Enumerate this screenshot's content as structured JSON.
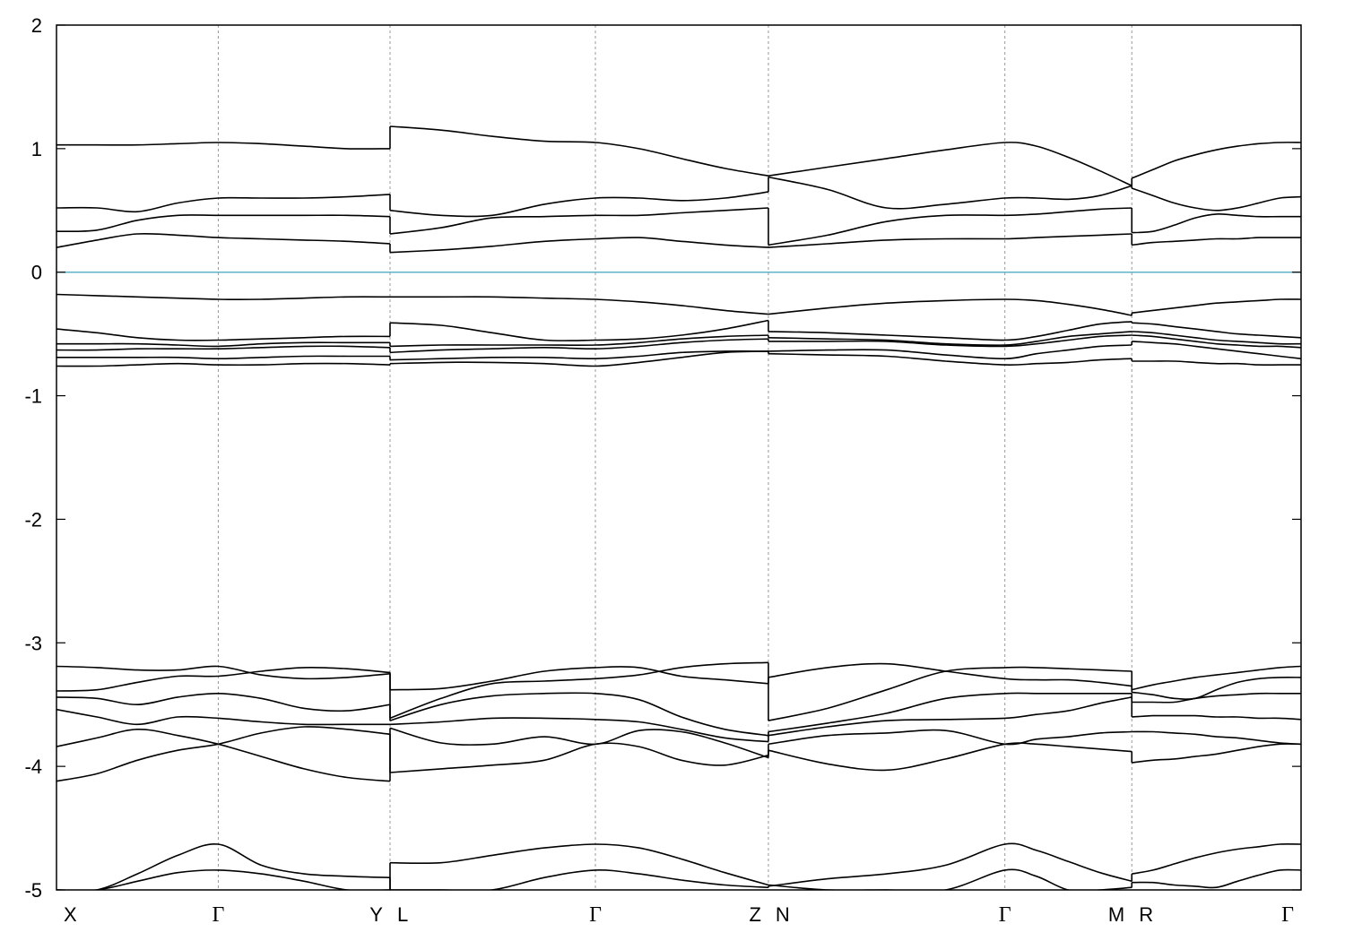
{
  "chart_data": {
    "type": "line",
    "title": "",
    "xlabel": "",
    "ylabel": "",
    "ylim": [
      -5,
      2
    ],
    "yticks": [
      {
        "value": 2,
        "label": "2"
      },
      {
        "value": 1,
        "label": "1"
      },
      {
        "value": 0,
        "label": "0"
      },
      {
        "value": -1,
        "label": "-1"
      },
      {
        "value": -2,
        "label": "-2"
      },
      {
        "value": -3,
        "label": "-3"
      },
      {
        "value": -4,
        "label": "-4"
      },
      {
        "value": -5,
        "label": "-5"
      }
    ],
    "xlim": [
      0,
      10
    ],
    "kpoints": [
      {
        "x": 0.0,
        "label": "X",
        "align": "start"
      },
      {
        "x": 1.3,
        "label": "Γ",
        "align": "middle",
        "greek": true
      },
      {
        "x": 2.68,
        "label": "Y",
        "align": "end"
      },
      {
        "x": 2.68,
        "label": "L",
        "align": "start"
      },
      {
        "x": 4.33,
        "label": "Γ",
        "align": "middle",
        "greek": true
      },
      {
        "x": 5.72,
        "label": "Z",
        "align": "end"
      },
      {
        "x": 5.72,
        "label": "N",
        "align": "start"
      },
      {
        "x": 7.62,
        "label": "Γ",
        "align": "middle",
        "greek": true
      },
      {
        "x": 8.64,
        "label": "M",
        "align": "end"
      },
      {
        "x": 8.64,
        "label": "R",
        "align": "start"
      },
      {
        "x": 10.0,
        "label": "Γ",
        "align": "end",
        "greek": true
      }
    ],
    "vlines": [
      1.3,
      2.68,
      4.33,
      5.72,
      7.62,
      8.64
    ],
    "fermi_level": 0,
    "grid": "vertical-dashed-at-kpoints",
    "colors": {
      "bands": "#000000",
      "fermi": "#5fb3c8",
      "vgrid": "#999999"
    },
    "segments": [
      {
        "name": "X-Γ-Y",
        "x": [
          0,
          0.325,
          0.65,
          0.975,
          1.3,
          1.645,
          1.99,
          2.335,
          2.68
        ],
        "bands": [
          [
            -5.0,
            -5.0,
            -4.87,
            -4.72,
            -4.63,
            -4.8,
            -4.87,
            -4.89,
            -4.9
          ],
          [
            -5.0,
            -5.0,
            -4.93,
            -4.86,
            -4.84,
            -4.87,
            -4.93,
            -5.0,
            -5.0
          ],
          [
            -4.12,
            -4.06,
            -3.95,
            -3.87,
            -3.82,
            -3.73,
            -3.68,
            -3.7,
            -3.74
          ],
          [
            -3.84,
            -3.77,
            -3.7,
            -3.75,
            -3.82,
            -3.92,
            -4.02,
            -4.09,
            -4.12
          ],
          [
            -3.54,
            -3.6,
            -3.66,
            -3.6,
            -3.61,
            -3.64,
            -3.66,
            -3.66,
            -3.66
          ],
          [
            -3.44,
            -3.45,
            -3.5,
            -3.44,
            -3.41,
            -3.45,
            -3.53,
            -3.55,
            -3.5
          ],
          [
            -3.39,
            -3.38,
            -3.32,
            -3.27,
            -3.27,
            -3.23,
            -3.2,
            -3.21,
            -3.24
          ],
          [
            -3.19,
            -3.2,
            -3.22,
            -3.22,
            -3.19,
            -3.26,
            -3.29,
            -3.28,
            -3.25
          ],
          [
            -0.76,
            -0.76,
            -0.75,
            -0.74,
            -0.75,
            -0.75,
            -0.74,
            -0.74,
            -0.75
          ],
          [
            -0.69,
            -0.69,
            -0.69,
            -0.69,
            -0.7,
            -0.69,
            -0.68,
            -0.68,
            -0.68
          ],
          [
            -0.63,
            -0.63,
            -0.62,
            -0.62,
            -0.62,
            -0.61,
            -0.6,
            -0.6,
            -0.61
          ],
          [
            -0.58,
            -0.58,
            -0.58,
            -0.59,
            -0.6,
            -0.58,
            -0.57,
            -0.57,
            -0.57
          ],
          [
            -0.46,
            -0.49,
            -0.53,
            -0.55,
            -0.55,
            -0.54,
            -0.53,
            -0.52,
            -0.52
          ],
          [
            -0.18,
            -0.19,
            -0.2,
            -0.21,
            -0.22,
            -0.22,
            -0.21,
            -0.2,
            -0.2
          ],
          [
            0.2,
            0.26,
            0.31,
            0.3,
            0.28,
            0.27,
            0.26,
            0.25,
            0.23
          ],
          [
            0.33,
            0.34,
            0.42,
            0.46,
            0.46,
            0.46,
            0.46,
            0.46,
            0.45
          ],
          [
            0.52,
            0.52,
            0.49,
            0.56,
            0.6,
            0.6,
            0.6,
            0.61,
            0.63
          ],
          [
            1.03,
            1.03,
            1.03,
            1.04,
            1.05,
            1.04,
            1.02,
            1.0,
            1.0
          ]
        ]
      },
      {
        "name": "L-Γ-Z",
        "x": [
          2.68,
          3.09,
          3.5,
          3.92,
          4.33,
          4.68,
          5.02,
          5.37,
          5.72
        ],
        "bands": [
          [
            -5.0,
            -5.0,
            -5.0,
            -4.9,
            -4.84,
            -4.87,
            -4.92,
            -4.96,
            -4.98
          ],
          [
            -4.78,
            -4.78,
            -4.72,
            -4.66,
            -4.63,
            -4.66,
            -4.75,
            -4.86,
            -4.96
          ],
          [
            -4.05,
            -4.02,
            -3.99,
            -3.95,
            -3.82,
            -3.84,
            -3.95,
            -3.99,
            -3.91
          ],
          [
            -3.69,
            -3.81,
            -3.82,
            -3.76,
            -3.82,
            -3.71,
            -3.72,
            -3.81,
            -3.93
          ],
          [
            -3.66,
            -3.64,
            -3.61,
            -3.61,
            -3.62,
            -3.64,
            -3.7,
            -3.77,
            -3.8
          ],
          [
            -3.63,
            -3.5,
            -3.43,
            -3.41,
            -3.41,
            -3.46,
            -3.6,
            -3.7,
            -3.75
          ],
          [
            -3.61,
            -3.45,
            -3.33,
            -3.31,
            -3.29,
            -3.26,
            -3.2,
            -3.17,
            -3.16
          ],
          [
            -3.38,
            -3.37,
            -3.31,
            -3.23,
            -3.2,
            -3.2,
            -3.27,
            -3.3,
            -3.33
          ],
          [
            -0.74,
            -0.73,
            -0.73,
            -0.74,
            -0.76,
            -0.73,
            -0.69,
            -0.65,
            -0.64
          ],
          [
            -0.71,
            -0.7,
            -0.69,
            -0.69,
            -0.7,
            -0.68,
            -0.65,
            -0.64,
            -0.64
          ],
          [
            -0.65,
            -0.63,
            -0.62,
            -0.61,
            -0.62,
            -0.6,
            -0.57,
            -0.55,
            -0.54
          ],
          [
            -0.6,
            -0.59,
            -0.59,
            -0.59,
            -0.59,
            -0.57,
            -0.54,
            -0.52,
            -0.51
          ],
          [
            -0.41,
            -0.43,
            -0.49,
            -0.55,
            -0.55,
            -0.54,
            -0.51,
            -0.46,
            -0.39
          ],
          [
            -0.2,
            -0.2,
            -0.2,
            -0.21,
            -0.22,
            -0.24,
            -0.27,
            -0.31,
            -0.34
          ],
          [
            0.16,
            0.18,
            0.21,
            0.25,
            0.27,
            0.28,
            0.25,
            0.22,
            0.2
          ],
          [
            0.31,
            0.36,
            0.44,
            0.45,
            0.46,
            0.46,
            0.48,
            0.5,
            0.52
          ],
          [
            0.5,
            0.46,
            0.46,
            0.55,
            0.6,
            0.6,
            0.58,
            0.6,
            0.65
          ],
          [
            1.18,
            1.15,
            1.1,
            1.06,
            1.05,
            1.0,
            0.92,
            0.84,
            0.78
          ]
        ]
      },
      {
        "name": "N-Γ-M",
        "x": [
          5.72,
          6.195,
          6.67,
          7.145,
          7.62,
          7.875,
          8.13,
          8.385,
          8.64
        ],
        "bands": [
          [
            -4.97,
            -4.91,
            -4.87,
            -4.8,
            -4.63,
            -4.68,
            -4.77,
            -4.86,
            -4.93
          ],
          [
            -4.96,
            -5.0,
            -5.0,
            -5.0,
            -4.84,
            -4.89,
            -5.0,
            -5.0,
            -4.98
          ],
          [
            -3.87,
            -3.98,
            -4.03,
            -3.94,
            -3.82,
            -3.82,
            -3.84,
            -3.86,
            -3.88
          ],
          [
            -3.82,
            -3.75,
            -3.73,
            -3.71,
            -3.82,
            -3.78,
            -3.76,
            -3.73,
            -3.72
          ],
          [
            -3.75,
            -3.68,
            -3.63,
            -3.62,
            -3.61,
            -3.58,
            -3.55,
            -3.49,
            -3.44
          ],
          [
            -3.72,
            -3.65,
            -3.57,
            -3.45,
            -3.41,
            -3.41,
            -3.41,
            -3.41,
            -3.41
          ],
          [
            -3.63,
            -3.53,
            -3.38,
            -3.23,
            -3.2,
            -3.2,
            -3.21,
            -3.22,
            -3.23
          ],
          [
            -3.28,
            -3.2,
            -3.17,
            -3.23,
            -3.29,
            -3.3,
            -3.3,
            -3.32,
            -3.35
          ],
          [
            -0.66,
            -0.67,
            -0.68,
            -0.72,
            -0.75,
            -0.74,
            -0.73,
            -0.71,
            -0.7
          ],
          [
            -0.64,
            -0.63,
            -0.63,
            -0.67,
            -0.7,
            -0.66,
            -0.63,
            -0.6,
            -0.59
          ],
          [
            -0.56,
            -0.56,
            -0.56,
            -0.59,
            -0.6,
            -0.58,
            -0.55,
            -0.52,
            -0.51
          ],
          [
            -0.53,
            -0.54,
            -0.55,
            -0.58,
            -0.59,
            -0.56,
            -0.52,
            -0.5,
            -0.48
          ],
          [
            -0.48,
            -0.49,
            -0.51,
            -0.53,
            -0.55,
            -0.52,
            -0.47,
            -0.42,
            -0.4
          ],
          [
            -0.34,
            -0.29,
            -0.25,
            -0.23,
            -0.22,
            -0.23,
            -0.26,
            -0.3,
            -0.35
          ],
          [
            0.2,
            0.23,
            0.26,
            0.27,
            0.27,
            0.28,
            0.29,
            0.3,
            0.31
          ],
          [
            0.22,
            0.3,
            0.41,
            0.46,
            0.46,
            0.47,
            0.49,
            0.51,
            0.52
          ],
          [
            0.77,
            0.67,
            0.52,
            0.55,
            0.6,
            0.6,
            0.59,
            0.62,
            0.7
          ],
          [
            0.78,
            0.85,
            0.92,
            0.99,
            1.05,
            1.02,
            0.93,
            0.82,
            0.7
          ]
        ]
      },
      {
        "name": "R-Γ",
        "x": [
          8.64,
          8.81,
          8.98,
          9.15,
          9.32,
          9.49,
          9.66,
          9.83,
          10.0
        ],
        "bands": [
          [
            -4.87,
            -4.84,
            -4.79,
            -4.74,
            -4.7,
            -4.67,
            -4.65,
            -4.63,
            -4.63
          ],
          [
            -4.94,
            -4.94,
            -4.96,
            -4.97,
            -4.98,
            -4.93,
            -4.88,
            -4.84,
            -4.84
          ],
          [
            -3.97,
            -3.95,
            -3.94,
            -3.92,
            -3.9,
            -3.87,
            -3.84,
            -3.82,
            -3.82
          ],
          [
            -3.72,
            -3.72,
            -3.73,
            -3.74,
            -3.76,
            -3.77,
            -3.79,
            -3.81,
            -3.82
          ],
          [
            -3.6,
            -3.59,
            -3.59,
            -3.59,
            -3.6,
            -3.6,
            -3.61,
            -3.61,
            -3.62
          ],
          [
            -3.48,
            -3.48,
            -3.48,
            -3.45,
            -3.43,
            -3.42,
            -3.41,
            -3.41,
            -3.41
          ],
          [
            -3.4,
            -3.42,
            -3.45,
            -3.45,
            -3.38,
            -3.32,
            -3.29,
            -3.28,
            -3.28
          ],
          [
            -3.38,
            -3.34,
            -3.31,
            -3.28,
            -3.26,
            -3.24,
            -3.22,
            -3.2,
            -3.19
          ],
          [
            -0.72,
            -0.72,
            -0.72,
            -0.73,
            -0.74,
            -0.74,
            -0.75,
            -0.75,
            -0.75
          ],
          [
            -0.56,
            -0.57,
            -0.58,
            -0.6,
            -0.62,
            -0.64,
            -0.66,
            -0.68,
            -0.7
          ],
          [
            -0.51,
            -0.52,
            -0.54,
            -0.56,
            -0.58,
            -0.59,
            -0.6,
            -0.6,
            -0.61
          ],
          [
            -0.48,
            -0.49,
            -0.51,
            -0.53,
            -0.55,
            -0.56,
            -0.57,
            -0.58,
            -0.58
          ],
          [
            -0.41,
            -0.42,
            -0.44,
            -0.46,
            -0.48,
            -0.5,
            -0.51,
            -0.52,
            -0.53
          ],
          [
            -0.33,
            -0.31,
            -0.29,
            -0.27,
            -0.25,
            -0.24,
            -0.23,
            -0.22,
            -0.22
          ],
          [
            0.22,
            0.24,
            0.25,
            0.26,
            0.27,
            0.27,
            0.28,
            0.28,
            0.28
          ],
          [
            0.32,
            0.33,
            0.38,
            0.44,
            0.47,
            0.46,
            0.45,
            0.45,
            0.45
          ],
          [
            0.68,
            0.62,
            0.56,
            0.52,
            0.5,
            0.52,
            0.56,
            0.6,
            0.61
          ],
          [
            0.76,
            0.83,
            0.9,
            0.95,
            0.99,
            1.02,
            1.04,
            1.05,
            1.05
          ]
        ]
      }
    ]
  }
}
